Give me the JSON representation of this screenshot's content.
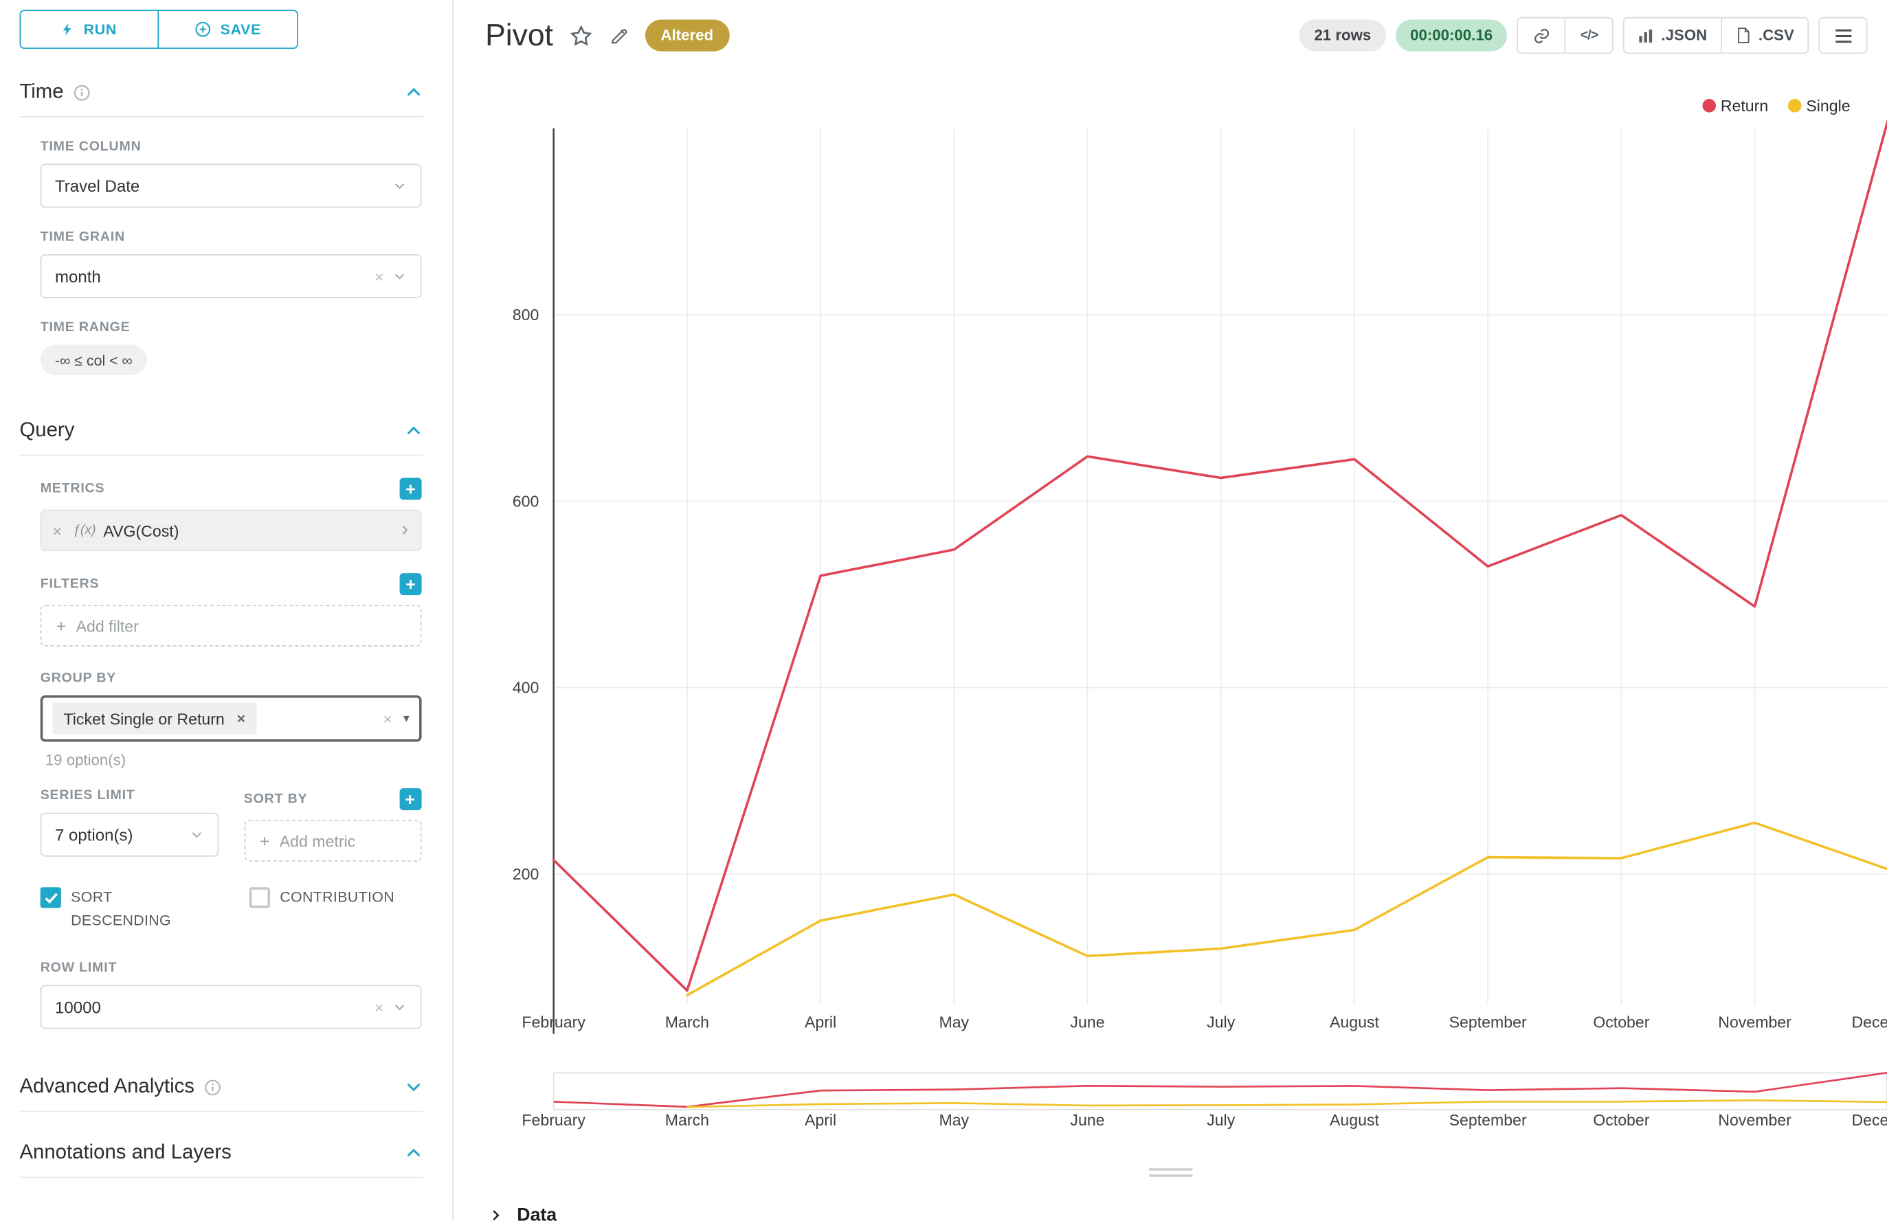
{
  "icons": {
    "plus": "+",
    "close": "×",
    "caret": "▾",
    "code": "</>",
    "chevron_right": "›"
  },
  "colors": {
    "accent": "#20a7c9",
    "altered_badge_bg": "#bfa03a",
    "timer_bg": "#c0e6d0",
    "timer_text": "#20693f",
    "grid": "#ececec"
  },
  "sidebar": {
    "run_label": "RUN",
    "save_label": "SAVE",
    "time": {
      "title": "Time",
      "time_column_label": "TIME COLUMN",
      "time_column_value": "Travel Date",
      "time_grain_label": "TIME GRAIN",
      "time_grain_value": "month",
      "time_range_label": "TIME RANGE",
      "time_range_value": "-∞ ≤ col < ∞"
    },
    "query": {
      "title": "Query",
      "metrics_label": "METRICS",
      "metric_prefix": "ƒ(x)",
      "metric_value": "AVG(Cost)",
      "filters_label": "FILTERS",
      "add_filter_placeholder": "Add filter",
      "group_by_label": "GROUP BY",
      "group_by_value": "Ticket Single or Return",
      "group_by_options_hint": "19 option(s)",
      "series_limit_label": "SERIES LIMIT",
      "series_limit_value": "7 option(s)",
      "sort_by_label": "SORT BY",
      "add_metric_placeholder": "Add metric",
      "sort_descending_label": "SORT DESCENDING",
      "contribution_label": "CONTRIBUTION",
      "row_limit_label": "ROW LIMIT",
      "row_limit_value": "10000"
    },
    "advanced_analytics_label": "Advanced Analytics",
    "annotations_label": "Annotations and Layers"
  },
  "header": {
    "title": "Pivot",
    "altered_badge": "Altered",
    "rows_badge": "21 rows",
    "timer": "00:00:00.16",
    "json_label": ".JSON",
    "csv_label": ".CSV"
  },
  "data_panel": {
    "label": "Data"
  },
  "chart_data": {
    "type": "line",
    "title": "Pivot",
    "x": [
      "February",
      "March",
      "April",
      "May",
      "June",
      "July",
      "August",
      "September",
      "October",
      "November",
      "December"
    ],
    "series": [
      {
        "name": "Return",
        "color": "#e04355",
        "values": [
          215,
          75,
          520,
          548,
          648,
          625,
          645,
          530,
          585,
          487,
          1010
        ]
      },
      {
        "name": "Single",
        "color": "#f2c128",
        "values": [
          null,
          70,
          150,
          178,
          112,
          120,
          140,
          218,
          217,
          255,
          205
        ]
      }
    ],
    "ylim": [
      60,
      1000
    ],
    "yticks": [
      200,
      400,
      600,
      800
    ],
    "xlabel": "",
    "ylabel": "",
    "grid": true,
    "legend_position": "top-right",
    "has_minimap": true
  }
}
